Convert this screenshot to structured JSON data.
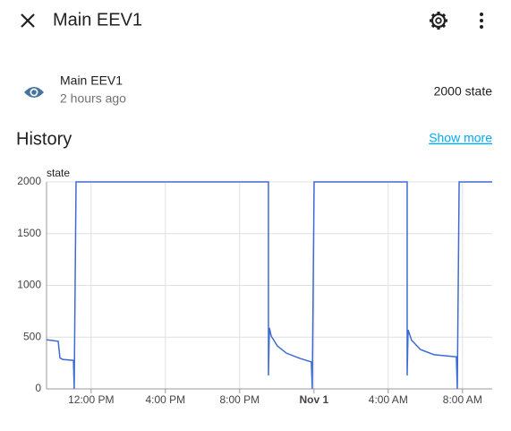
{
  "header": {
    "title": "Main EEV1"
  },
  "entity": {
    "name": "Main EEV1",
    "last_changed": "2 hours ago",
    "state": "2000 state"
  },
  "history": {
    "title": "History",
    "link": "Show more"
  },
  "chart_data": {
    "type": "line",
    "y_label": "state",
    "x": [
      9.6,
      10.23,
      10.32,
      10.47,
      11.05,
      11.09,
      11.19,
      21.55,
      21.55,
      21.6,
      21.7,
      22.03,
      22.52,
      23.24,
      23.86,
      23.91,
      24.01,
      29.02,
      29.02,
      29.07,
      29.26,
      29.74,
      30.47,
      31.67,
      31.72,
      31.82,
      33.6
    ],
    "series": [
      {
        "name": "Main EEV1",
        "color": "#3e6bd3",
        "values": [
          475,
          460,
          300,
          285,
          275,
          0,
          2000,
          2000,
          130,
          590,
          510,
          415,
          345,
          295,
          260,
          0,
          2000,
          2000,
          130,
          570,
          470,
          380,
          330,
          310,
          0,
          2000,
          2000
        ]
      }
    ],
    "xlim": [
      9.6,
      33.6
    ],
    "xticks": [
      {
        "value": 12,
        "label": "12:00 PM"
      },
      {
        "value": 16,
        "label": "4:00 PM"
      },
      {
        "value": 20,
        "label": "8:00 PM"
      },
      {
        "value": 24,
        "label": "Nov 1",
        "bold": true
      },
      {
        "value": 28,
        "label": "4:00 AM"
      },
      {
        "value": 32,
        "label": "8:00 AM"
      }
    ],
    "ylim": [
      0,
      2000
    ],
    "yticks": [
      0,
      500,
      1000,
      1500,
      2000
    ],
    "grid": true
  }
}
